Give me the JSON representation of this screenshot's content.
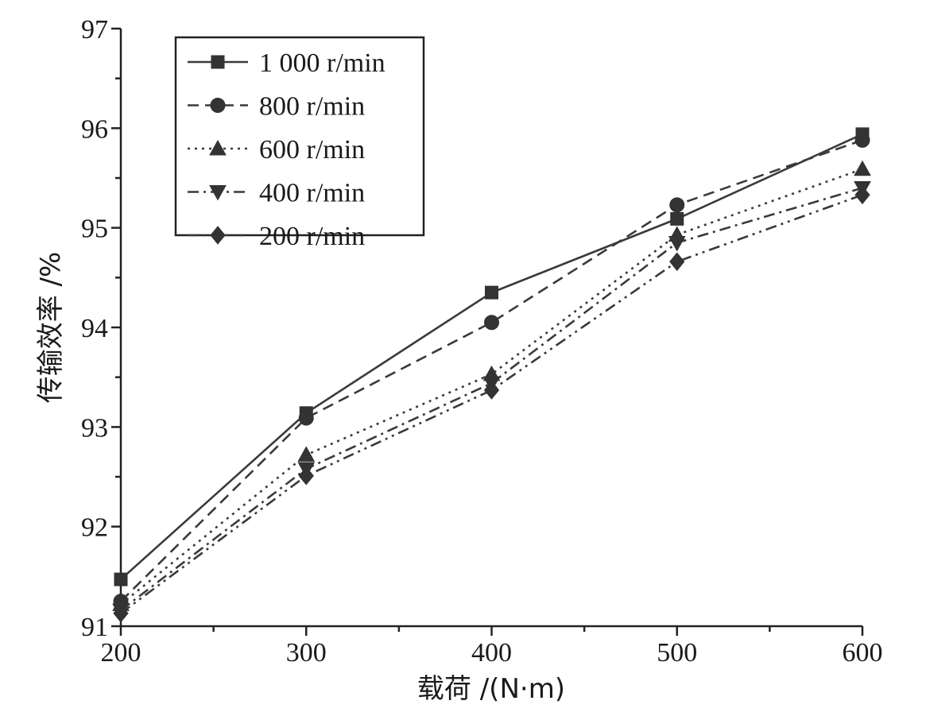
{
  "chart_data": {
    "type": "line",
    "title": "",
    "xlabel": "载荷 /(N·m)",
    "ylabel": "传输效率 /%",
    "x": [
      200,
      300,
      400,
      500,
      600
    ],
    "xlim": [
      200,
      600
    ],
    "ylim": [
      91,
      97
    ],
    "x_ticks": [
      "200",
      "300",
      "400",
      "500",
      "600"
    ],
    "y_ticks": [
      "91",
      "92",
      "93",
      "94",
      "95",
      "96",
      "97"
    ],
    "grid": false,
    "legend_position": "top-left",
    "series": [
      {
        "name": "1 000 r/min",
        "values": [
          91.47,
          93.14,
          94.35,
          95.09,
          95.94
        ],
        "marker": "square",
        "dash": "solid"
      },
      {
        "name": "800 r/min",
        "values": [
          91.25,
          93.09,
          94.05,
          95.23,
          95.88
        ],
        "marker": "circle",
        "dash": "dash"
      },
      {
        "name": "600 r/min",
        "values": [
          91.22,
          92.72,
          93.53,
          94.93,
          95.59
        ],
        "marker": "triangle-up",
        "dash": "dot"
      },
      {
        "name": "400 r/min",
        "values": [
          91.16,
          92.58,
          93.44,
          94.85,
          95.4
        ],
        "marker": "triangle-down",
        "dash": "dashdot"
      },
      {
        "name": "200 r/min",
        "values": [
          91.13,
          92.51,
          93.37,
          94.66,
          95.33
        ],
        "marker": "diamond",
        "dash": "dashdotdot"
      }
    ]
  }
}
